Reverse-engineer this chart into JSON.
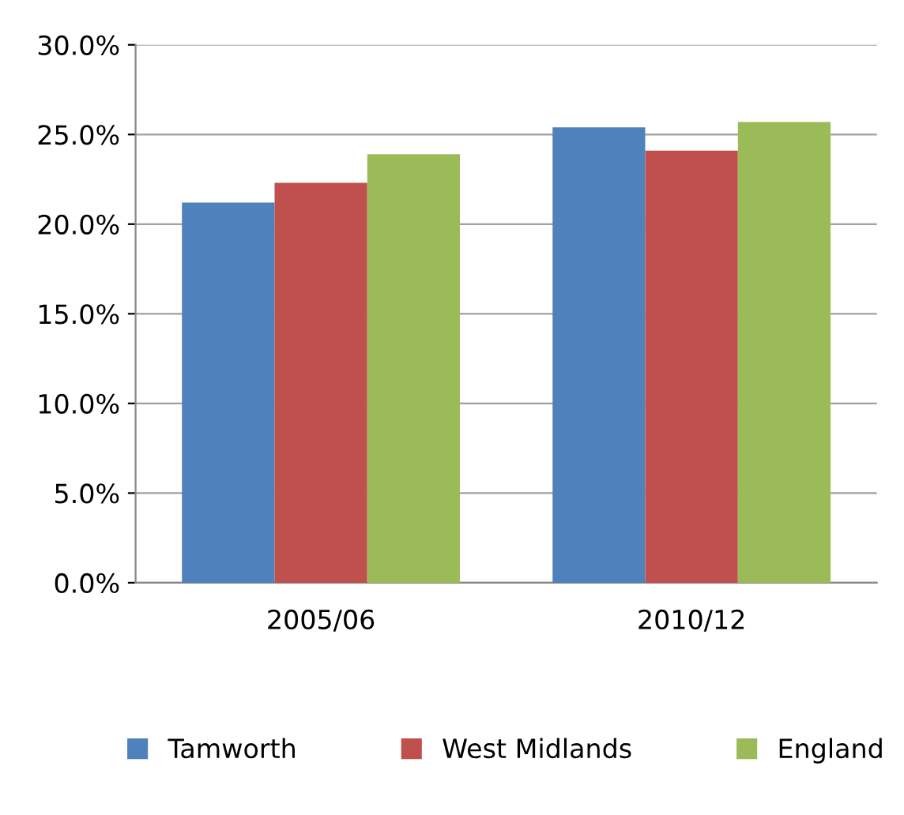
{
  "chart_data": {
    "type": "bar",
    "categories": [
      "2005/06",
      "2010/12"
    ],
    "series": [
      {
        "name": "Tamworth",
        "color": "#4f81bd",
        "values": [
          21.2,
          25.4
        ]
      },
      {
        "name": "West Midlands",
        "color": "#c0504d",
        "values": [
          22.3,
          24.1
        ]
      },
      {
        "name": "England",
        "color": "#9bbb59",
        "values": [
          23.9,
          25.7
        ]
      }
    ],
    "ylim": [
      0,
      30
    ],
    "yticks": [
      {
        "value": 0,
        "label": "0.0%"
      },
      {
        "value": 5,
        "label": "5.0%"
      },
      {
        "value": 10,
        "label": "10.0%"
      },
      {
        "value": 15,
        "label": "15.0%"
      },
      {
        "value": 20,
        "label": "20.0%"
      },
      {
        "value": 25,
        "label": "25.0%"
      },
      {
        "value": 30,
        "label": "30.0%"
      }
    ],
    "grid": "y",
    "legend": "bottom"
  }
}
